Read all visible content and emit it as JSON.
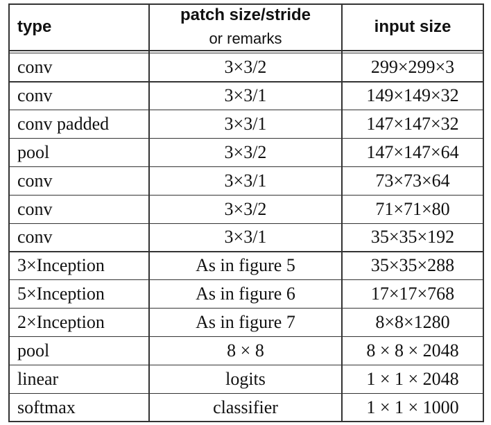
{
  "table": {
    "header": [
      "type",
      "patch size/stride",
      "input size"
    ],
    "header_subtext": "or remarks",
    "rows": [
      [
        "conv",
        "3×3/2",
        "299×299×3"
      ],
      [
        "conv",
        "3×3/1",
        "149×149×32"
      ],
      [
        "conv padded",
        "3×3/1",
        "147×147×32"
      ],
      [
        "pool",
        "3×3/2",
        "147×147×64"
      ],
      [
        "conv",
        "3×3/1",
        "73×73×64"
      ],
      [
        "conv",
        "3×3/2",
        "71×71×80"
      ],
      [
        "conv",
        "3×3/1",
        "35×35×192"
      ],
      [
        "3×Inception",
        "As in figure 5",
        "35×35×288"
      ],
      [
        "5×Inception",
        "As in figure 6",
        "17×17×768"
      ],
      [
        "2×Inception",
        "As in figure 7",
        "8×8×1280"
      ],
      [
        "pool",
        "8 × 8",
        "8 × 8 × 2048"
      ],
      [
        "linear",
        "logits",
        "1 × 1 × 2048"
      ],
      [
        "softmax",
        "classifier",
        "1 × 1 × 1000"
      ]
    ]
  }
}
